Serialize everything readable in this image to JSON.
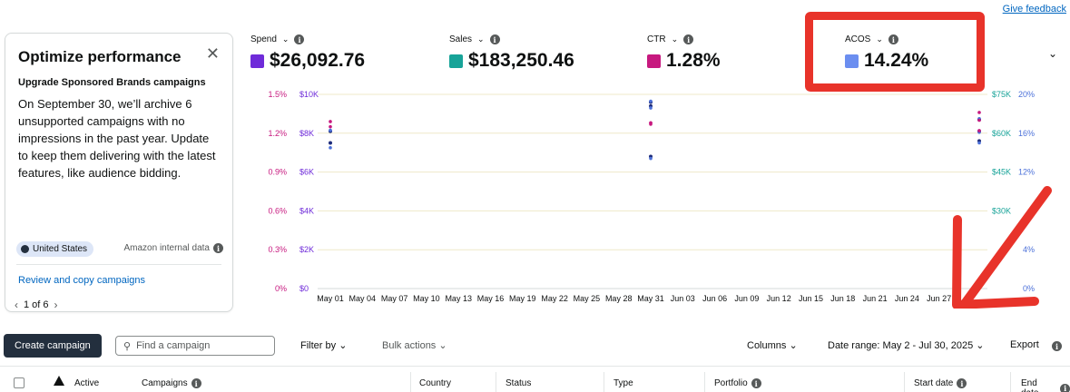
{
  "header": {
    "feedback_link": "Give feedback"
  },
  "promo_card": {
    "title": "Optimize performance",
    "subtitle": "Upgrade Sponsored Brands campaigns",
    "body": "On September 30, we’ll archive 6 unsupported campaigns with no impressions in the past year. Update to keep them delivering with the latest features, like audience bidding.",
    "region_badge": "United States",
    "data_source": "Amazon internal data",
    "link": "Review and copy campaigns",
    "pager": "1 of 6"
  },
  "metrics": [
    {
      "label": "Spend",
      "value": "$26,092.76",
      "color": "#6f2bd9"
    },
    {
      "label": "Sales",
      "value": "$183,250.46",
      "color": "#17a398"
    },
    {
      "label": "CTR",
      "value": "1.28%",
      "color": "#c7197f"
    },
    {
      "label": "ACOS",
      "value": "14.24%",
      "color": "#6b8ef0"
    }
  ],
  "chart_data": {
    "type": "scatter",
    "y_axes": {
      "ctr_ticks": [
        "1.5%",
        "1.2%",
        "0.9%",
        "0.6%",
        "0.3%",
        "0%"
      ],
      "spend_ticks": [
        "$10K",
        "$8K",
        "$6K",
        "$4K",
        "$2K",
        "$0"
      ],
      "sales_ticks": [
        "$75K",
        "$60K",
        "$45K",
        "$30K",
        "",
        ""
      ],
      "acos_ticks": [
        "20%",
        "16%",
        "12%",
        "",
        "4%",
        "0%"
      ]
    },
    "x_ticks": [
      "May 01",
      "May 04",
      "May 07",
      "May 10",
      "May 13",
      "May 16",
      "May 19",
      "May 22",
      "May 25",
      "May 28",
      "May 31",
      "Jun 03",
      "Jun 06",
      "Jun 09",
      "Jun 12",
      "Jun 15",
      "Jun 18",
      "Jun 21",
      "Jun 24",
      "Jun 27"
    ],
    "points": [
      {
        "x": "May 01",
        "spend": 8100,
        "ctr": 1.29,
        "acos": 16.3,
        "sales": 58000
      },
      {
        "x": "May 01",
        "spend": 7500,
        "ctr": 1.25,
        "acos": 14.5,
        "sales": 52000
      },
      {
        "x": "May 31",
        "spend": 9600,
        "ctr": 1.27,
        "acos": 19.3,
        "sales": 71000
      },
      {
        "x": "May 31",
        "spend": 9400,
        "ctr": 1.28,
        "acos": 18.6,
        "sales": 70000
      },
      {
        "x": "May 31",
        "spend": 6800,
        "ctr": 1.28,
        "acos": 13.4,
        "sales": 50000
      },
      {
        "x": "Jul 30",
        "spend": 8700,
        "ctr": 1.36,
        "acos": 17.5,
        "sales": 65000
      },
      {
        "x": "Jul 30",
        "spend": 8100,
        "ctr": 1.3,
        "acos": 16.1,
        "sales": 60000
      },
      {
        "x": "Jul 30",
        "spend": 7600,
        "ctr": 1.22,
        "acos": 15.0,
        "sales": 56000
      }
    ]
  },
  "toolbar": {
    "create": "Create campaign",
    "search_placeholder": "Find a campaign",
    "filter": "Filter by",
    "bulk": "Bulk actions",
    "columns": "Columns",
    "date_range": "Date range: May 2 - Jul 30, 2025",
    "export": "Export"
  },
  "table": {
    "headers": {
      "active": "Active",
      "campaigns": "Campaigns",
      "country": "Country",
      "status": "Status",
      "type": "Type",
      "portfolio": "Portfolio",
      "start": "Start date",
      "end": "End date"
    }
  }
}
